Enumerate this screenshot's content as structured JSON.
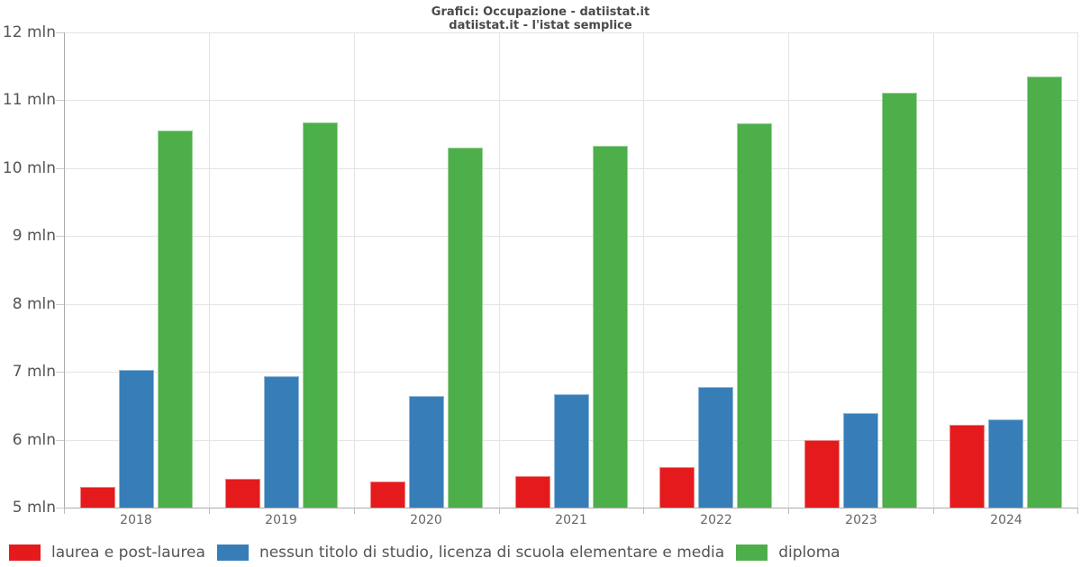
{
  "title": {
    "line1": "Grafici: Occupazione - datiistat.it",
    "line2": "datiistat.it - l'istat semplice"
  },
  "chart_data": {
    "type": "bar",
    "title": "Grafici: Occupazione - datiistat.it",
    "subtitle": "datiistat.it - l'istat semplice",
    "categories": [
      "2018",
      "2019",
      "2020",
      "2021",
      "2022",
      "2023",
      "2024"
    ],
    "series": [
      {
        "key": "laurea",
        "name": "laurea e post-laurea",
        "color": "#e41a1c",
        "values": [
          5.31,
          5.42,
          5.38,
          5.46,
          5.6,
          6.0,
          6.22
        ]
      },
      {
        "key": "nessun-titolo",
        "name": "nessun titolo di studio, licenza di scuola elementare e media",
        "color": "#377eb8",
        "values": [
          7.03,
          6.94,
          6.64,
          6.67,
          6.77,
          6.39,
          6.3
        ]
      },
      {
        "key": "diploma",
        "name": "diploma",
        "color": "#4daf4a",
        "values": [
          10.55,
          10.67,
          10.3,
          10.33,
          10.66,
          11.11,
          11.35
        ]
      }
    ],
    "y_axis": {
      "min": 5,
      "max": 12,
      "step": 1,
      "unit": "mln",
      "tick_labels": [
        "5 mln",
        "6 mln",
        "7 mln",
        "8 mln",
        "9 mln",
        "10 mln",
        "11 mln",
        "12 mln"
      ]
    },
    "grid": true,
    "legend_position": "bottom-left"
  },
  "colors": {
    "grid": "#e4e4e4",
    "axis": "#ababab",
    "title_text": "#4a4a4a",
    "axis_text": "#545454",
    "year_text": "#666666",
    "background": "#ffffff"
  }
}
